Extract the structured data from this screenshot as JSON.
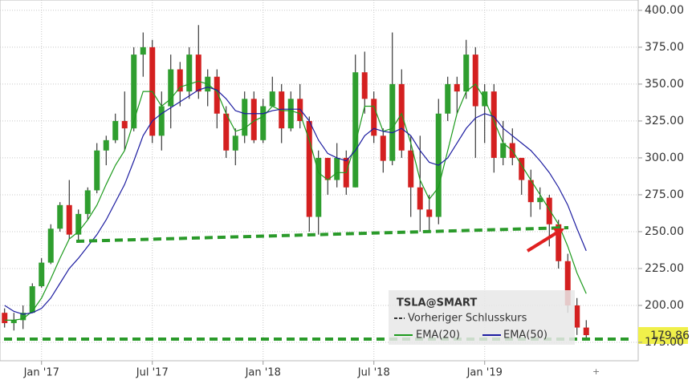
{
  "chart_data": {
    "type": "candlestick",
    "categories": [
      null,
      null,
      null,
      null,
      "Jan '17",
      null,
      null,
      null,
      null,
      null,
      null,
      null,
      null,
      null,
      null,
      null,
      "Jul '17",
      null,
      null,
      null,
      null,
      null,
      null,
      null,
      null,
      null,
      null,
      null,
      "Jan '18",
      null,
      null,
      null,
      null,
      null,
      null,
      null,
      null,
      null,
      null,
      null,
      "Jul '18",
      null,
      null,
      null,
      null,
      null,
      null,
      null,
      null,
      null,
      null,
      null,
      "Jan '19",
      null,
      null,
      null,
      null,
      null,
      null,
      null,
      null,
      null,
      null,
      null
    ],
    "open": [
      195,
      188,
      190,
      195,
      213,
      229,
      252,
      268,
      248,
      262,
      278,
      305,
      312,
      325,
      320,
      370,
      375,
      315,
      335,
      360,
      345,
      370,
      345,
      355,
      330,
      305,
      315,
      340,
      312,
      335,
      345,
      320,
      340,
      325,
      260,
      300,
      285,
      300,
      280,
      358,
      340,
      315,
      298,
      350,
      305,
      280,
      265,
      260,
      330,
      350,
      345,
      370,
      335,
      345,
      300,
      310,
      300,
      285,
      270,
      273,
      255,
      230,
      200,
      185
    ],
    "high": [
      198,
      195,
      200,
      215,
      232,
      255,
      270,
      285,
      265,
      280,
      310,
      315,
      330,
      345,
      375,
      385,
      380,
      345,
      370,
      365,
      375,
      390,
      360,
      360,
      335,
      320,
      345,
      345,
      340,
      355,
      350,
      345,
      350,
      328,
      305,
      300,
      310,
      305,
      370,
      372,
      345,
      320,
      385,
      360,
      315,
      315,
      275,
      340,
      355,
      355,
      380,
      375,
      350,
      350,
      325,
      320,
      300,
      292,
      280,
      275,
      258,
      235,
      205,
      190
    ],
    "low": [
      185,
      183,
      184,
      195,
      212,
      228,
      250,
      245,
      244,
      258,
      276,
      295,
      310,
      305,
      318,
      355,
      310,
      305,
      320,
      335,
      340,
      340,
      335,
      320,
      300,
      295,
      310,
      310,
      310,
      335,
      310,
      318,
      320,
      250,
      248,
      275,
      280,
      275,
      280,
      330,
      310,
      290,
      295,
      300,
      260,
      250,
      250,
      255,
      325,
      330,
      340,
      300,
      310,
      290,
      295,
      295,
      275,
      260,
      265,
      240,
      225,
      195,
      180,
      177
    ],
    "close": [
      188,
      190,
      195,
      213,
      229,
      252,
      268,
      248,
      262,
      278,
      305,
      312,
      325,
      320,
      370,
      375,
      315,
      335,
      360,
      345,
      370,
      345,
      355,
      330,
      305,
      315,
      340,
      312,
      335,
      345,
      320,
      340,
      325,
      260,
      300,
      285,
      300,
      280,
      358,
      340,
      315,
      298,
      350,
      305,
      280,
      265,
      260,
      330,
      350,
      345,
      370,
      335,
      345,
      300,
      310,
      300,
      285,
      270,
      273,
      255,
      230,
      200,
      185,
      179.86
    ],
    "up_color": "#2f9e2f",
    "down_color": "#d42020",
    "series": [
      {
        "name": "EMA(20)",
        "color": "#1d9a1d",
        "values": [
          190,
          190,
          191,
          196,
          205,
          218,
          232,
          245,
          250,
          258,
          268,
          282,
          295,
          305,
          325,
          345,
          345,
          335,
          340,
          348,
          350,
          352,
          350,
          345,
          330,
          318,
          320,
          325,
          328,
          335,
          332,
          332,
          330,
          312,
          290,
          285,
          290,
          290,
          310,
          335,
          335,
          318,
          320,
          330,
          310,
          285,
          272,
          280,
          305,
          330,
          345,
          350,
          340,
          325,
          310,
          305,
          295,
          285,
          275,
          265,
          255,
          240,
          222,
          208
        ]
      },
      {
        "name": "EMA(50)",
        "color": "#1c1ca0",
        "values": [
          200,
          196,
          194,
          195,
          198,
          205,
          215,
          225,
          232,
          240,
          248,
          258,
          270,
          282,
          298,
          315,
          325,
          330,
          334,
          338,
          342,
          346,
          348,
          346,
          340,
          332,
          330,
          330,
          330,
          332,
          333,
          333,
          333,
          325,
          312,
          303,
          300,
          298,
          305,
          315,
          320,
          318,
          317,
          320,
          315,
          305,
          297,
          295,
          300,
          310,
          320,
          327,
          330,
          328,
          320,
          315,
          310,
          305,
          298,
          290,
          280,
          268,
          252,
          237
        ]
      }
    ],
    "legend_title": "TSLA@SMART",
    "prev_close_label": "Vorheriger Schlusskurs",
    "ylim": [
      162.5,
      407
    ],
    "yticks": [
      {
        "value": 175,
        "label": "175.00"
      },
      {
        "value": 200,
        "label": "200.00"
      },
      {
        "value": 225,
        "label": "225.00"
      },
      {
        "value": 250,
        "label": "250.00"
      },
      {
        "value": 275,
        "label": "275.00"
      },
      {
        "value": 300,
        "label": "300.00"
      },
      {
        "value": 325,
        "label": "325.00"
      },
      {
        "value": 350,
        "label": "350.00"
      },
      {
        "value": 375,
        "label": "375.00"
      },
      {
        "value": 400,
        "label": "400.00"
      }
    ],
    "grid": true
  }
}
